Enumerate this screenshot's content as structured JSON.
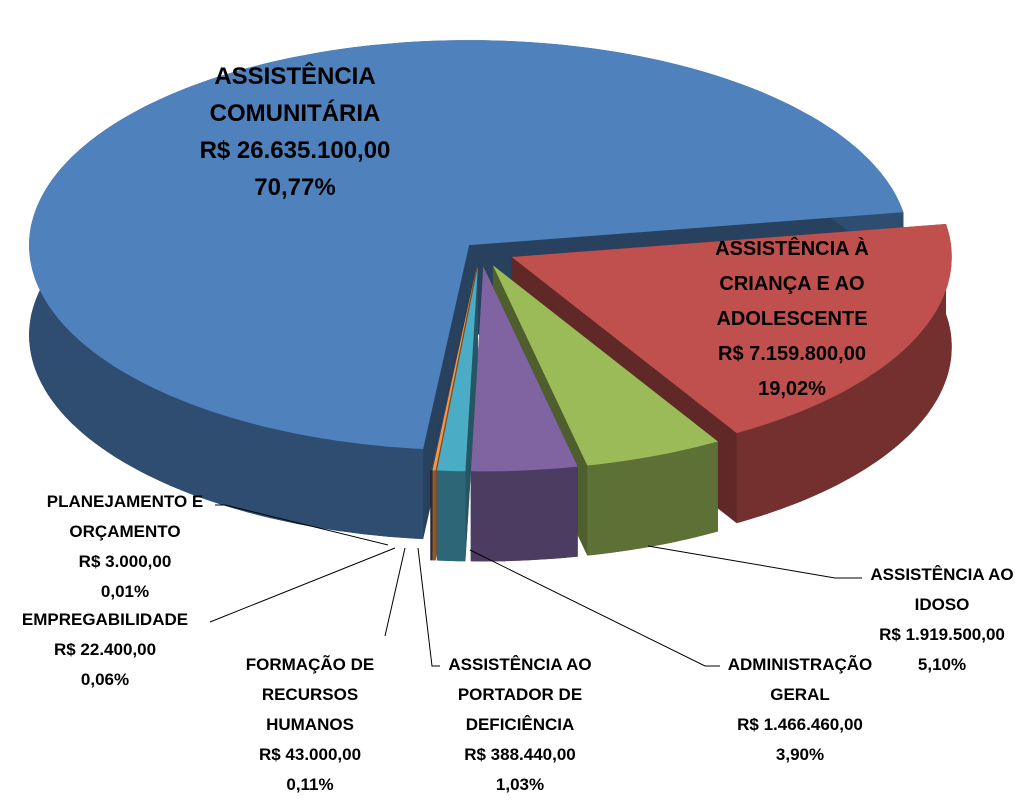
{
  "chart_data": {
    "type": "pie",
    "categories": [
      "ASSISTÊNCIA COMUNITÁRIA",
      "ASSISTÊNCIA À CRIANÇA E AO ADOLESCENTE",
      "ASSISTÊNCIA AO IDOSO",
      "ADMINISTRAÇÃO GERAL",
      "ASSISTÊNCIA AO PORTADOR DE DEFICIÊNCIA",
      "FORMAÇÃO DE RECURSOS HUMANOS",
      "EMPREGABILIDADE",
      "PLANEJAMENTO E ORÇAMENTO"
    ],
    "values": [
      26635100,
      7159800,
      1919500,
      1466460,
      388440,
      43000,
      22400,
      3000
    ],
    "value_labels": [
      "R$ 26.635.100,00",
      "R$ 7.159.800,00",
      "R$ 1.919.500,00",
      "R$ 1.466.460,00",
      "R$ 388.440,00",
      "R$ 43.000,00",
      "R$ 22.400,00",
      "R$ 3.000,00"
    ],
    "percentages": [
      70.77,
      19.02,
      5.1,
      3.9,
      1.03,
      0.11,
      0.06,
      0.01
    ],
    "percentage_labels": [
      "70,77%",
      "19,02%",
      "5,10%",
      "3,90%",
      "1,03%",
      "0,11%",
      "0,06%",
      "0,01%"
    ],
    "colors": [
      "#4f81bd",
      "#c0504d",
      "#9bbb59",
      "#8064a2",
      "#4bacc6",
      "#f79646",
      "#2c4d75",
      "#772c2a"
    ]
  }
}
